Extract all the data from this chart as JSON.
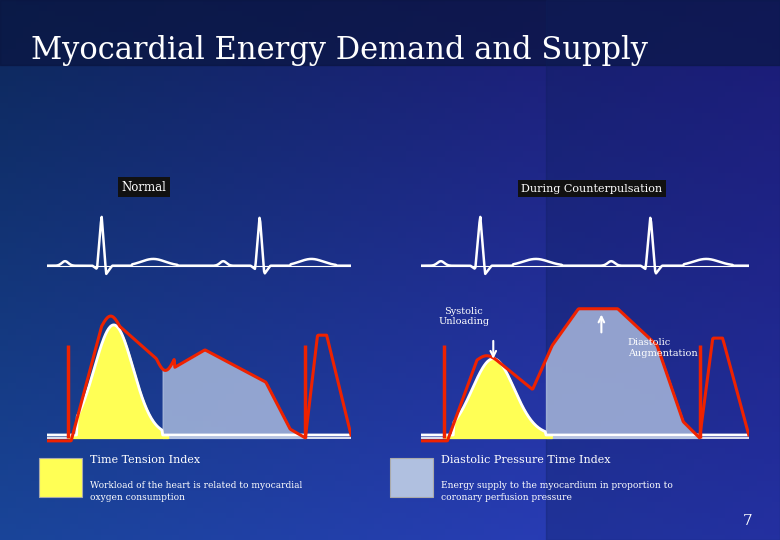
{
  "title": "Myocardial Energy Demand and Supply",
  "title_fontsize": 22,
  "title_color": "#ffffff",
  "normal_label": "Normal",
  "counterpulsation_label": "During Counterpulsation",
  "systolic_label": "Systolic\nUnloading",
  "diastolic_label": "Diastolic\nAugmentation",
  "legend_yellow_label": "Time Tension Index",
  "legend_yellow_sub": "Workload of the heart is related to myocardial\noxygen consumption",
  "legend_blue_label": "Diastolic Pressure Time Index",
  "legend_blue_sub": "Energy supply to the myocardium in proportion to\ncoronary perfusion pressure",
  "page_number": "7",
  "yellow_color": "#ffff55",
  "blue_fill_color": "#b0c0e0",
  "red_line_color": "#ee2200",
  "white_line_color": "#ffffff",
  "ecg_color": "#ffffff",
  "bg_color": "#1a3a9a"
}
